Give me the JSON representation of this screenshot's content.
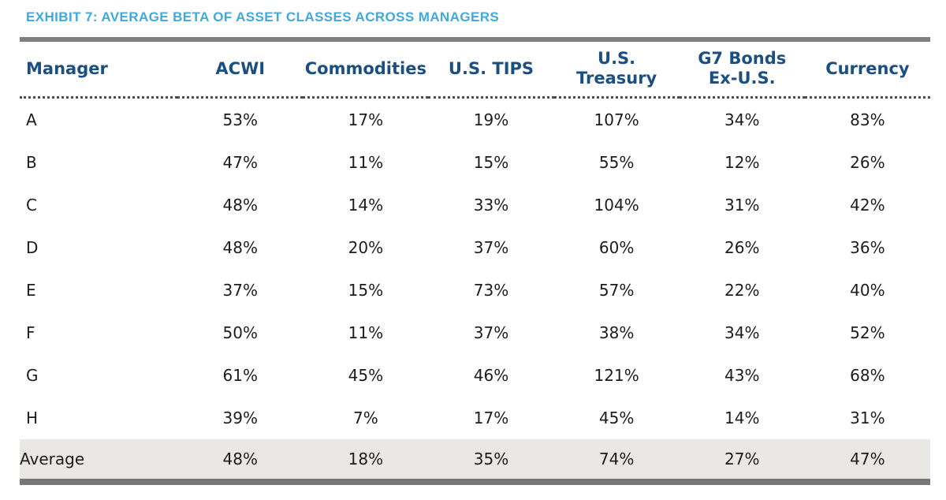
{
  "title": "EXHIBIT 7: AVERAGE BETA OF ASSET CLASSES ACROSS MANAGERS",
  "colors": {
    "title_text": "#3FA9DC",
    "header_text": "#1B4F82",
    "top_bar": "#7F7F7F",
    "bottom_bar": "#777777",
    "average_row_bg": "#E9E8E5",
    "body_text": "#1C1C1C"
  },
  "chart_data": {
    "type": "table",
    "title": "EXHIBIT 7: AVERAGE BETA OF ASSET CLASSES ACROSS MANAGERS",
    "columns": [
      "Manager",
      "ACWI",
      "Commodities",
      "U.S. TIPS",
      "U.S.\nTreasury",
      "G7 Bonds\nEx-U.S.",
      "Currency"
    ],
    "rows": [
      {
        "label": "A",
        "cells": [
          "53%",
          "17%",
          "19%",
          "107%",
          "34%",
          "83%"
        ]
      },
      {
        "label": "B",
        "cells": [
          "47%",
          "11%",
          "15%",
          "55%",
          "12%",
          "26%"
        ]
      },
      {
        "label": "C",
        "cells": [
          "48%",
          "14%",
          "33%",
          "104%",
          "31%",
          "42%"
        ]
      },
      {
        "label": "D",
        "cells": [
          "48%",
          "20%",
          "37%",
          "60%",
          "26%",
          "36%"
        ]
      },
      {
        "label": "E",
        "cells": [
          "37%",
          "15%",
          "73%",
          "57%",
          "22%",
          "40%"
        ]
      },
      {
        "label": "F",
        "cells": [
          "50%",
          "11%",
          "37%",
          "38%",
          "34%",
          "52%"
        ]
      },
      {
        "label": "G",
        "cells": [
          "61%",
          "45%",
          "46%",
          "121%",
          "43%",
          "68%"
        ]
      },
      {
        "label": "H",
        "cells": [
          "39%",
          "7%",
          "17%",
          "45%",
          "14%",
          "31%"
        ]
      },
      {
        "label": "Average",
        "cells": [
          "48%",
          "18%",
          "35%",
          "74%",
          "27%",
          "47%"
        ],
        "is_summary": true
      }
    ],
    "units": "percent",
    "notes_layout": "last row shaded summary row; thick gray rule above header and below summary row; dotted rule under header"
  }
}
